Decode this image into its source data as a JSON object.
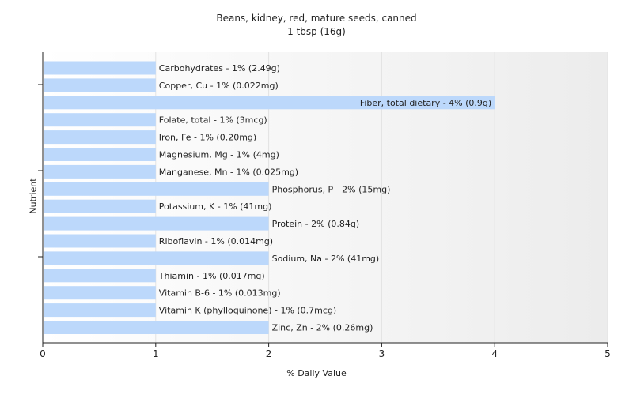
{
  "chart_data": {
    "type": "bar",
    "orientation": "horizontal",
    "title": "Beans, kidney, red, mature seeds, canned",
    "subtitle": "1 tbsp (16g)",
    "xlabel": "% Daily Value",
    "ylabel": "Nutrient",
    "xlim": [
      0,
      5
    ],
    "xticks": [
      "0",
      "1",
      "2",
      "3",
      "4",
      "5"
    ],
    "grid": true,
    "categories": [
      "Carbohydrates",
      "Copper, Cu",
      "Fiber, total dietary",
      "Folate, total",
      "Iron, Fe",
      "Magnesium, Mg",
      "Manganese, Mn",
      "Phosphorus, P",
      "Potassium, K",
      "Protein",
      "Riboflavin",
      "Sodium, Na",
      "Thiamin",
      "Vitamin B-6",
      "Vitamin K (phylloquinone)",
      "Zinc, Zn"
    ],
    "values": [
      1,
      1,
      4,
      1,
      1,
      1,
      1,
      2,
      1,
      2,
      1,
      2,
      1,
      1,
      1,
      2
    ],
    "labels": [
      "Carbohydrates - 1% (2.49g)",
      "Copper, Cu - 1% (0.022mg)",
      "Fiber, total dietary - 4% (0.9g)",
      "Folate, total - 1% (3mcg)",
      "Iron, Fe - 1% (0.20mg)",
      "Magnesium, Mg - 1% (4mg)",
      "Manganese, Mn - 1% (0.025mg)",
      "Phosphorus, P - 2% (15mg)",
      "Potassium, K - 1% (41mg)",
      "Protein - 2% (0.84g)",
      "Riboflavin - 1% (0.014mg)",
      "Sodium, Na - 2% (41mg)",
      "Thiamin - 1% (0.017mg)",
      "Vitamin B-6 - 1% (0.013mg)",
      "Vitamin K (phylloquinone) - 1% (0.7mcg)",
      "Zinc, Zn - 2% (0.26mg)"
    ],
    "colors": {
      "bar": "#bcd8fb",
      "grid": "#e2e2e2",
      "axis": "#222222",
      "text": "#222222"
    }
  }
}
